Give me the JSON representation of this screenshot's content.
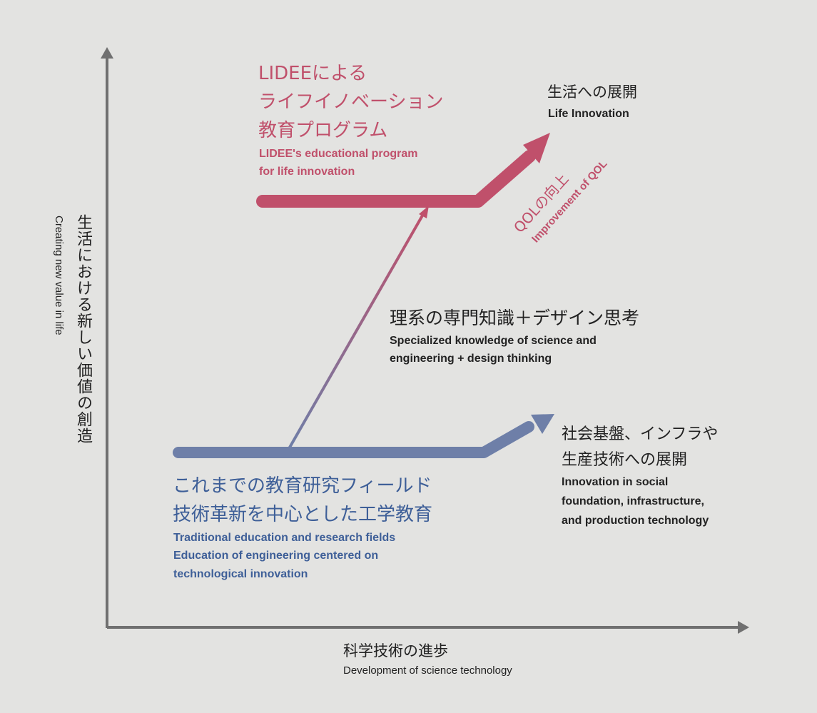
{
  "colors": {
    "background": "#e3e3e1",
    "axis": "#707070",
    "pink": "#c0506b",
    "blue": "#6e7fa8",
    "blue_text": "#3e5f98",
    "dark_text": "#222222"
  },
  "axes": {
    "y_label_jp": "生活における新しい価値の創造",
    "y_label_en": "Creating new value in life",
    "x_label_jp": "科学技術の進歩",
    "x_label_en": "Development of science technology"
  },
  "lidee": {
    "title_line1": "LIDEEによる",
    "title_line2": "ライフイノベーション",
    "title_line3": "教育プログラム",
    "en_line1": "LIDEE's educational program",
    "en_line2": "for life innovation"
  },
  "life": {
    "jp": "生活への展開",
    "en": "Life Innovation"
  },
  "qol": {
    "jp": "QOLの向上",
    "en": "Improvement of QOL"
  },
  "specialized": {
    "jp": "理系の専門知識＋デザイン思考",
    "en_line1": "Specialized knowledge of science and",
    "en_line2": "engineering + design thinking"
  },
  "traditional": {
    "jp_line1": "これまでの教育研究フィールド",
    "jp_line2": "技術革新を中心とした工学教育",
    "en_line1": "Traditional education and research fields",
    "en_line2": "Education of engineering centered on",
    "en_line3": "technological innovation"
  },
  "social": {
    "jp_line1": "社会基盤、インフラや",
    "jp_line2": "生産技術への展開",
    "en_line1": "Innovation in social",
    "en_line2": "foundation, infrastructure,",
    "en_line3": "and production technology"
  }
}
